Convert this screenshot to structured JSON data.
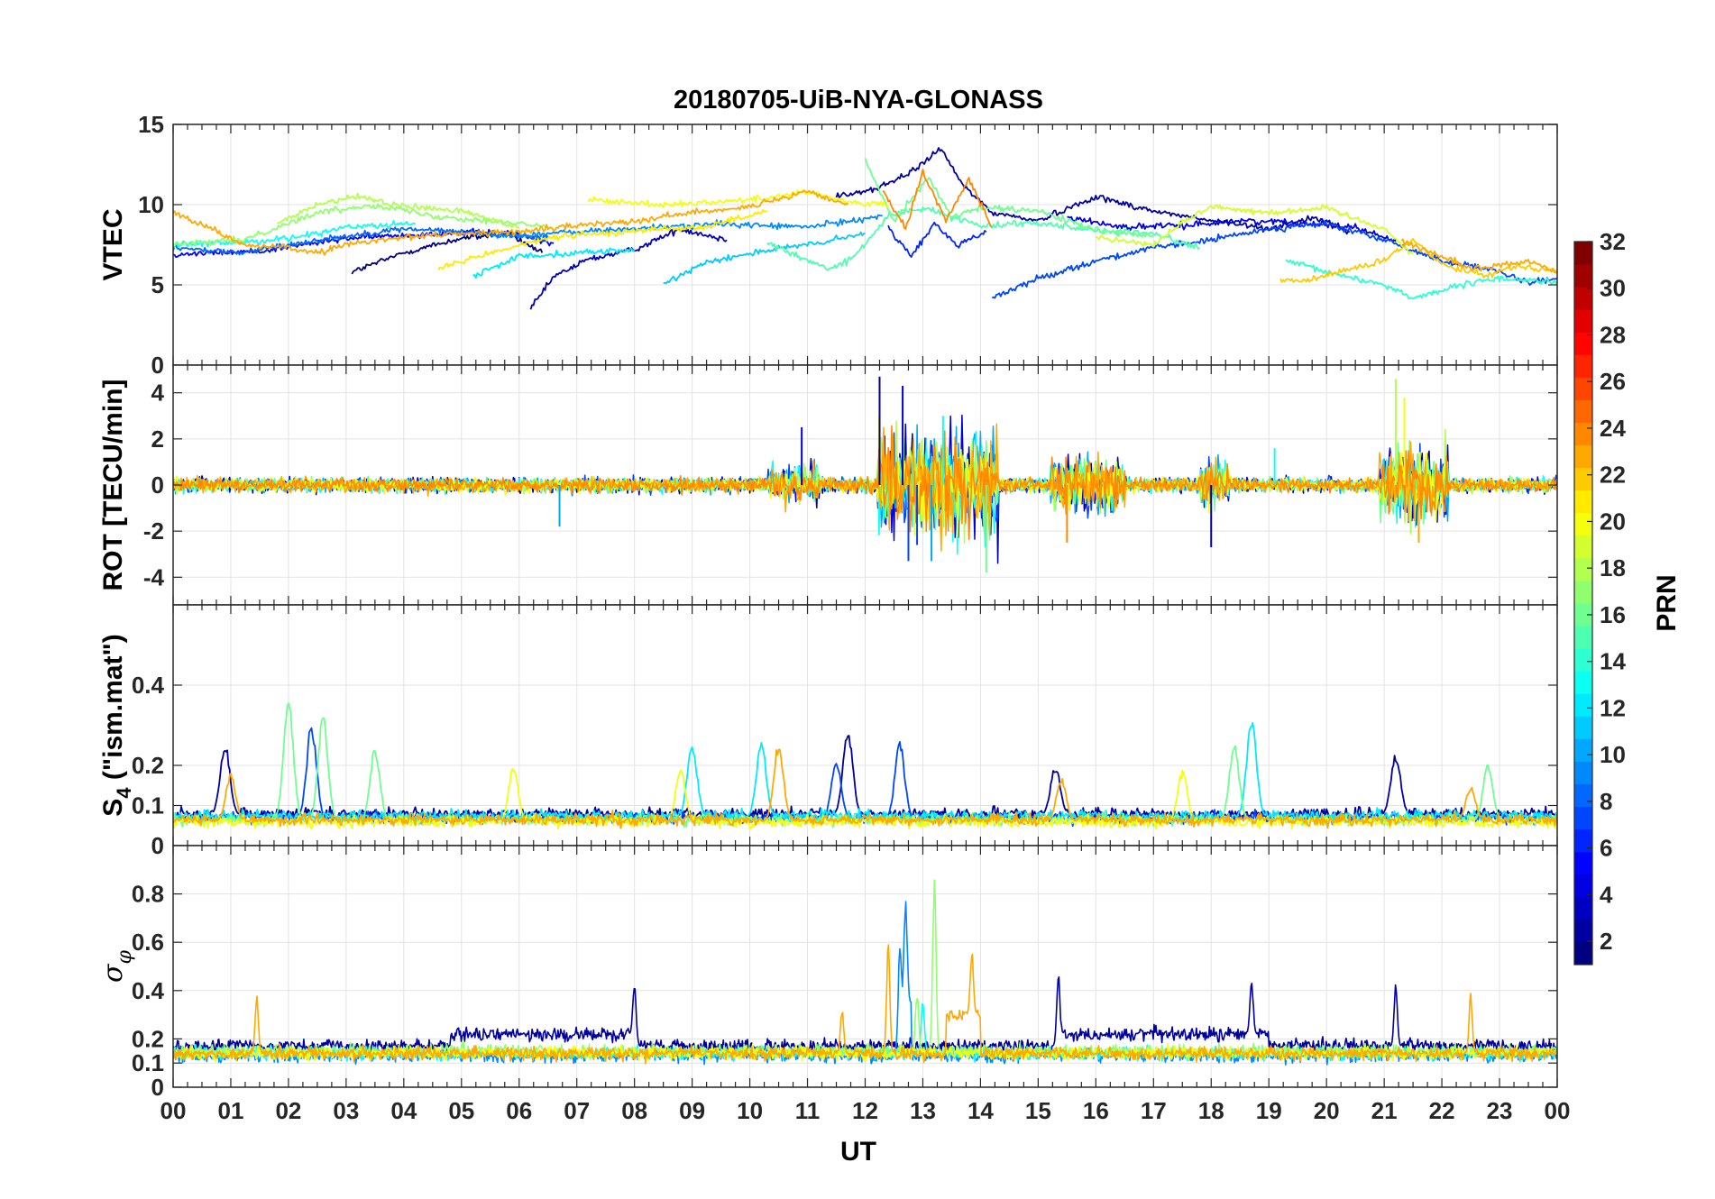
{
  "chart_data": {
    "title": "20180705-UiB-NYA-GLONASS",
    "type": "line",
    "xlabel": "UT",
    "x_ticks": [
      "00",
      "01",
      "02",
      "03",
      "04",
      "05",
      "06",
      "07",
      "08",
      "09",
      "10",
      "11",
      "12",
      "13",
      "14",
      "15",
      "16",
      "17",
      "18",
      "19",
      "20",
      "21",
      "22",
      "23",
      "00"
    ],
    "xlim": [
      0,
      24
    ],
    "colorbar": {
      "label": "PRN",
      "colormap": "jet",
      "range": [
        1,
        32
      ],
      "ticks": [
        2,
        4,
        6,
        8,
        10,
        12,
        14,
        16,
        18,
        20,
        22,
        24,
        26,
        28,
        30,
        32
      ],
      "tick_labels": [
        "2",
        "4",
        "6",
        "8",
        "10",
        "12",
        "14",
        "16",
        "18",
        "20",
        "22",
        "24",
        "26",
        "28",
        "30",
        "32"
      ]
    },
    "panels": [
      {
        "id": "vtec",
        "ylabel": "VTEC",
        "ylim": [
          0,
          15
        ],
        "y_ticks": [
          0,
          5,
          10,
          15
        ],
        "y_tick_labels": [
          "0",
          "5",
          "10",
          "15"
        ],
        "series": [
          {
            "prn": 1,
            "x": [
              3.1,
              4.0,
              5.0,
              5.8,
              6.4
            ],
            "y": [
              5.8,
              7.0,
              7.9,
              8.2,
              7.0
            ]
          },
          {
            "prn": 3,
            "x": [
              6.2,
              6.6,
              7.2,
              8.0,
              8.8,
              9.6
            ],
            "y": [
              3.5,
              5.5,
              6.6,
              7.2,
              8.5,
              7.8
            ]
          },
          {
            "prn": 5,
            "x": [
              0,
              1.5,
              3.0,
              4.5,
              5.8,
              6.6
            ],
            "y": [
              6.9,
              7.1,
              7.9,
              8.2,
              8.3,
              7.6
            ]
          },
          {
            "prn": 8,
            "x": [
              0,
              1.2,
              2.5,
              4.0,
              5.5,
              6.5
            ],
            "y": [
              7.3,
              7.0,
              7.8,
              8.5,
              8.2,
              7.9
            ]
          },
          {
            "prn": 9,
            "x": [
              5.5,
              7.5,
              9.5,
              11.0,
              12.3
            ],
            "y": [
              8.0,
              8.4,
              8.8,
              8.6,
              9.3
            ]
          },
          {
            "prn": 2,
            "x": [
              11.5,
              12.2,
              12.8,
              13.3,
              13.7,
              14.2,
              15.0,
              16.0,
              17.0,
              18.0,
              19.0,
              19.8,
              20.4
            ],
            "y": [
              10.5,
              11.0,
              12.0,
              13.5,
              11.2,
              9.5,
              9.0,
              10.5,
              9.6,
              9.0,
              8.5,
              9.2,
              8.3
            ]
          },
          {
            "prn": 6,
            "x": [
              12.4,
              12.8,
              13.2,
              13.6,
              14.1
            ],
            "y": [
              8.5,
              6.8,
              8.8,
              7.5,
              8.3
            ]
          },
          {
            "prn": 4,
            "x": [
              15.5,
              16.5,
              17.5,
              18.5,
              19.5,
              20.5,
              21.2
            ],
            "y": [
              9.2,
              8.6,
              8.7,
              9.0,
              8.9,
              8.6,
              7.7
            ]
          },
          {
            "prn": 7,
            "x": [
              14.2,
              15.0,
              16.0,
              17.0,
              18.0,
              19.0,
              20.0,
              21.0,
              22.0,
              23.0,
              23.5,
              24.0
            ],
            "y": [
              4.2,
              5.4,
              6.5,
              7.3,
              7.8,
              8.5,
              8.8,
              7.8,
              6.5,
              5.8,
              5.1,
              5.4
            ]
          },
          {
            "prn": 11,
            "x": [
              8.5,
              9.2,
              10.2,
              11.2,
              12.0
            ],
            "y": [
              5.0,
              6.4,
              7.1,
              7.6,
              8.2
            ]
          },
          {
            "prn": 12,
            "x": [
              5.2,
              6.0,
              7.0,
              8.0
            ],
            "y": [
              5.5,
              6.8,
              7.0,
              7.2
            ]
          },
          {
            "prn": 13,
            "x": [
              0,
              1.0,
              2.0,
              3.0,
              4.2
            ],
            "y": [
              7.5,
              7.6,
              7.9,
              8.6,
              8.8
            ]
          },
          {
            "prn": 14,
            "x": [
              19.3,
              20.0,
              21.0,
              21.5,
              22.5,
              23.0,
              24.0
            ],
            "y": [
              6.5,
              5.8,
              5.0,
              4.2,
              5.1,
              5.4,
              5.2
            ]
          },
          {
            "prn": 15,
            "x": [
              10.3,
              11.0,
              11.4,
              11.8,
              12.4,
              13.0,
              14.0,
              15.0,
              16.0,
              17.0,
              17.8
            ],
            "y": [
              7.6,
              6.5,
              6.0,
              6.7,
              9.3,
              9.8,
              8.7,
              8.9,
              8.4,
              8.2,
              7.3
            ]
          },
          {
            "prn": 17,
            "x": [
              0,
              1.2,
              2.5,
              3.5,
              4.5,
              5.5,
              6.5
            ],
            "y": [
              7.5,
              7.8,
              9.5,
              10.0,
              9.3,
              9.0,
              8.6
            ]
          },
          {
            "prn": 16,
            "x": [
              12.0,
              12.5,
              13.1,
              13.5,
              14.0,
              15.0,
              16.0,
              17.0
            ],
            "y": [
              12.8,
              9.0,
              11.7,
              9.2,
              9.8,
              9.6,
              8.4,
              8.0
            ]
          },
          {
            "prn": 18,
            "x": [
              1.8,
              2.5,
              3.2,
              4.0,
              5.0,
              6.0
            ],
            "y": [
              8.8,
              10.0,
              10.5,
              9.9,
              9.6,
              8.6
            ]
          },
          {
            "prn": 19,
            "x": [
              16.0,
              17.0,
              17.5,
              18.0,
              19.0,
              20.0,
              21.0,
              21.5
            ],
            "y": [
              8.0,
              7.5,
              8.9,
              9.9,
              9.5,
              9.8,
              8.5,
              6.9
            ]
          },
          {
            "prn": 20,
            "x": [
              7.2,
              8.5,
              10.0,
              11.0,
              11.8,
              12.4
            ],
            "y": [
              10.3,
              10.0,
              10.3,
              10.8,
              10.1,
              10.0
            ]
          },
          {
            "prn": 21,
            "x": [
              4.6,
              5.5,
              6.6,
              7.5,
              8.4,
              9.2,
              10.3
            ],
            "y": [
              6.0,
              7.0,
              8.0,
              8.2,
              8.5,
              8.6,
              9.6
            ]
          },
          {
            "prn": 22,
            "x": [
              19.2,
              19.7,
              20.2,
              21.0,
              21.5,
              22.0,
              22.8,
              23.3,
              24.0
            ],
            "y": [
              5.2,
              5.3,
              5.8,
              6.5,
              7.8,
              6.3,
              5.6,
              6.2,
              5.9
            ]
          },
          {
            "prn": 23,
            "x": [
              0,
              0.6,
              1.2,
              2.0,
              2.5,
              3.0,
              4.0,
              5.0,
              6.0,
              7.0,
              8.0,
              9.0,
              10.0,
              10.5,
              11.0,
              11.7
            ],
            "y": [
              9.5,
              8.6,
              7.5,
              7.3,
              7.0,
              7.5,
              8.0,
              8.2,
              8.3,
              8.7,
              9.0,
              9.5,
              9.9,
              10.3,
              10.8,
              10.0
            ]
          },
          {
            "prn": 24,
            "x": [
              12.3,
              12.7,
              13.0,
              13.4,
              13.8,
              14.2
            ],
            "y": [
              10.8,
              8.5,
              12.0,
              9.0,
              11.6,
              8.6
            ]
          },
          {
            "prn": 23,
            "x": [
              21.3,
              22.0,
              22.5,
              23.0,
              23.5,
              24.0
            ],
            "y": [
              7.7,
              6.8,
              6.0,
              6.2,
              6.5,
              5.8
            ]
          }
        ]
      },
      {
        "id": "rot",
        "ylabel": "ROT [TECU/min]",
        "ylim": [
          -5.2,
          5.2
        ],
        "y_ticks": [
          -4,
          -2,
          0,
          2,
          4
        ],
        "y_tick_labels": [
          "-4",
          "-2",
          "0",
          "2",
          "4"
        ],
        "noise_base": 0.28,
        "active_intervals": [
          {
            "start": 12.2,
            "end": 14.3,
            "amplitude": 2.6
          },
          {
            "start": 15.2,
            "end": 16.5,
            "amplitude": 1.4
          },
          {
            "start": 20.9,
            "end": 22.1,
            "amplitude": 1.8
          },
          {
            "start": 10.3,
            "end": 11.2,
            "amplitude": 0.9
          },
          {
            "start": 17.8,
            "end": 18.3,
            "amplitude": 1.1
          }
        ],
        "peaks": [
          {
            "x": 12.25,
            "y": 4.7
          },
          {
            "x": 12.65,
            "y": 4.3
          },
          {
            "x": 12.75,
            "y": -3.3
          },
          {
            "x": 13.15,
            "y": -3.3
          },
          {
            "x": 13.35,
            "y": 3.0
          },
          {
            "x": 14.1,
            "y": -3.8
          },
          {
            "x": 21.2,
            "y": 4.6
          },
          {
            "x": 21.35,
            "y": 3.8
          },
          {
            "x": 21.6,
            "y": -2.5
          },
          {
            "x": 15.5,
            "y": -2.5
          },
          {
            "x": 18.0,
            "y": -2.7
          },
          {
            "x": 10.9,
            "y": 2.5
          },
          {
            "x": 12.9,
            "y": -2.6
          },
          {
            "x": 6.7,
            "y": -1.8
          },
          {
            "x": 19.1,
            "y": 1.6
          }
        ],
        "colors_prn": [
          2,
          4,
          7,
          10,
          13,
          16,
          18,
          20,
          23,
          24
        ]
      },
      {
        "id": "s4",
        "ylabel": "S4 (\"ism.mat\")",
        "ylabel_main": "S",
        "ylabel_sub": "4",
        "ylabel_rest": " (\"ism.mat\")",
        "ylim": [
          0,
          0.6
        ],
        "y_ticks": [
          0,
          0.1,
          0.2,
          0.4
        ],
        "y_tick_labels": [
          "0",
          "0.1",
          "0.2",
          "0.4"
        ],
        "series_base": [
          {
            "prn": 2,
            "base": 0.075,
            "peaks": [
              {
                "x": 0.9,
                "y": 0.26
              },
              {
                "x": 11.7,
                "y": 0.29
              },
              {
                "x": 15.3,
                "y": 0.2
              },
              {
                "x": 21.2,
                "y": 0.23
              }
            ]
          },
          {
            "prn": 7,
            "base": 0.065,
            "peaks": [
              {
                "x": 2.4,
                "y": 0.31
              },
              {
                "x": 11.5,
                "y": 0.22
              },
              {
                "x": 12.6,
                "y": 0.26
              }
            ]
          },
          {
            "prn": 12,
            "base": 0.07,
            "peaks": [
              {
                "x": 9.0,
                "y": 0.26
              },
              {
                "x": 10.2,
                "y": 0.26
              },
              {
                "x": 18.7,
                "y": 0.32
              }
            ]
          },
          {
            "prn": 16,
            "base": 0.06,
            "peaks": [
              {
                "x": 2.0,
                "y": 0.38
              },
              {
                "x": 2.6,
                "y": 0.33
              },
              {
                "x": 3.5,
                "y": 0.25
              },
              {
                "x": 18.4,
                "y": 0.26
              },
              {
                "x": 22.8,
                "y": 0.21
              }
            ]
          },
          {
            "prn": 20,
            "base": 0.055,
            "peaks": [
              {
                "x": 5.9,
                "y": 0.2
              },
              {
                "x": 8.8,
                "y": 0.2
              },
              {
                "x": 17.5,
                "y": 0.19
              }
            ]
          },
          {
            "prn": 23,
            "base": 0.06,
            "peaks": [
              {
                "x": 1.0,
                "y": 0.18
              },
              {
                "x": 10.5,
                "y": 0.26
              },
              {
                "x": 15.4,
                "y": 0.17
              },
              {
                "x": 22.5,
                "y": 0.15
              }
            ]
          }
        ]
      },
      {
        "id": "sigma",
        "ylabel": "σφ",
        "ylabel_main": "σ",
        "ylabel_sub": "φ",
        "ylim": [
          0,
          1.0
        ],
        "y_ticks": [
          0,
          0.1,
          0.2,
          0.4,
          0.6,
          0.8
        ],
        "y_tick_labels": [
          "0",
          "0.1",
          "0.2",
          "0.4",
          "0.6",
          "0.8"
        ],
        "series_base": [
          {
            "prn": 2,
            "base": 0.17,
            "active": [
              [
                4.8,
                8.0
              ],
              [
                15.4,
                19.0
              ]
            ],
            "active_level": 0.22,
            "peaks": [
              {
                "x": 8.0,
                "y": 0.44
              },
              {
                "x": 15.35,
                "y": 0.48
              },
              {
                "x": 18.7,
                "y": 0.45
              },
              {
                "x": 21.2,
                "y": 0.43
              }
            ]
          },
          {
            "prn": 9,
            "base": 0.13,
            "active": [
              [
                12.6,
                12.8
              ]
            ],
            "active_level": 0.35,
            "peaks": [
              {
                "x": 12.7,
                "y": 0.79
              },
              {
                "x": 12.6,
                "y": 0.6
              }
            ]
          },
          {
            "prn": 13,
            "base": 0.14,
            "active": [],
            "active_level": 0.2,
            "peaks": [
              {
                "x": 13.0,
                "y": 0.36
              }
            ]
          },
          {
            "prn": 17,
            "base": 0.15,
            "active": [],
            "active_level": 0.2,
            "peaks": [
              {
                "x": 13.2,
                "y": 0.9
              },
              {
                "x": 12.9,
                "y": 0.4
              }
            ]
          },
          {
            "prn": 20,
            "base": 0.14,
            "active": [],
            "active_level": 0.18,
            "peaks": []
          },
          {
            "prn": 23,
            "base": 0.14,
            "active": [
              [
                13.4,
                14.0
              ]
            ],
            "active_level": 0.3,
            "peaks": [
              {
                "x": 1.45,
                "y": 0.39
              },
              {
                "x": 12.4,
                "y": 0.62
              },
              {
                "x": 13.85,
                "y": 0.57
              },
              {
                "x": 22.5,
                "y": 0.39
              },
              {
                "x": 11.6,
                "y": 0.33
              }
            ]
          }
        ]
      }
    ]
  }
}
